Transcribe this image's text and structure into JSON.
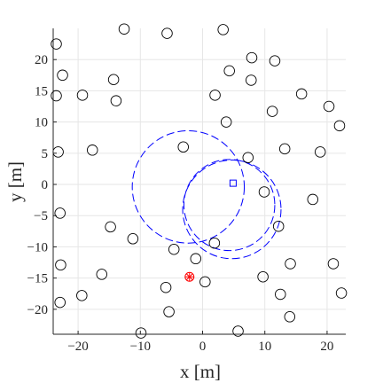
{
  "chart_data": {
    "type": "scatter",
    "xlabel": "x [m]",
    "ylabel": "y [m]",
    "xlim": [
      -24,
      23
    ],
    "ylim": [
      -24,
      25
    ],
    "xticks": [
      -20,
      -10,
      0,
      10,
      20
    ],
    "yticks": [
      20,
      15,
      10,
      5,
      0,
      -5,
      -10,
      -15,
      -20
    ],
    "grid": true,
    "colors": {
      "obstacle": "#000000",
      "path": "#0000ff",
      "start": "#ff0000",
      "goal": "#0000ff",
      "grid": "#e6e6e6",
      "axis": "#262626"
    },
    "obstacles": [
      [
        -23.5,
        22.5
      ],
      [
        -22.5,
        17.5
      ],
      [
        -12.6,
        24.9
      ],
      [
        -5.7,
        24.2
      ],
      [
        3.3,
        24.8
      ],
      [
        7.9,
        20.3
      ],
      [
        11.6,
        19.8
      ],
      [
        4.3,
        18.2
      ],
      [
        7.8,
        16.7
      ],
      [
        -14.3,
        16.8
      ],
      [
        -19.3,
        14.3
      ],
      [
        -23.5,
        14.2
      ],
      [
        -13.9,
        13.4
      ],
      [
        2.0,
        14.3
      ],
      [
        15.9,
        14.5
      ],
      [
        20.3,
        12.5
      ],
      [
        11.2,
        11.7
      ],
      [
        22.0,
        9.4
      ],
      [
        3.8,
        10.0
      ],
      [
        -3.1,
        6.0
      ],
      [
        -23.2,
        5.2
      ],
      [
        -17.7,
        5.5
      ],
      [
        13.2,
        5.7
      ],
      [
        18.9,
        5.2
      ],
      [
        7.3,
        4.3
      ],
      [
        9.9,
        -1.2
      ],
      [
        17.7,
        -2.4
      ],
      [
        -22.9,
        -4.6
      ],
      [
        -14.8,
        -6.8
      ],
      [
        12.2,
        -6.7
      ],
      [
        -11.2,
        -8.7
      ],
      [
        1.9,
        -9.4
      ],
      [
        -4.6,
        -10.4
      ],
      [
        -1.1,
        -11.9
      ],
      [
        14.1,
        -12.7
      ],
      [
        21.0,
        -12.7
      ],
      [
        -22.8,
        -12.9
      ],
      [
        -16.2,
        -14.4
      ],
      [
        9.7,
        -14.8
      ],
      [
        0.4,
        -15.6
      ],
      [
        -5.9,
        -16.5
      ],
      [
        12.5,
        -17.6
      ],
      [
        22.3,
        -17.4
      ],
      [
        -19.4,
        -17.8
      ],
      [
        -22.9,
        -18.9
      ],
      [
        -5.4,
        -20.4
      ],
      [
        14.0,
        -21.2
      ],
      [
        -9.9,
        -23.8
      ],
      [
        5.7,
        -23.5
      ]
    ],
    "start": [
      -2.1,
      -14.8
    ],
    "goal": [
      4.9,
      0.2
    ],
    "paths": [
      {
        "cx": -2.3,
        "cy": -0.4,
        "r": 9.0,
        "dash": "9 4"
      },
      {
        "cx": 4.3,
        "cy": -3.3,
        "r": 7.3,
        "dash": "9 4"
      },
      {
        "cx": 4.7,
        "cy": -4.0,
        "r": 7.9,
        "dash": "9 4"
      }
    ]
  }
}
